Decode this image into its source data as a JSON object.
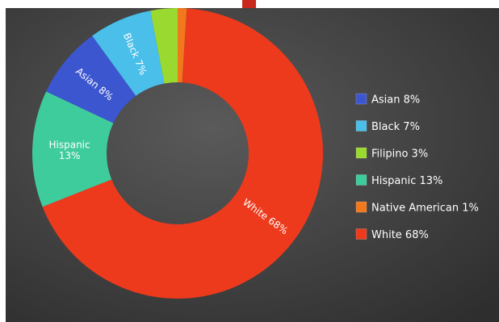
{
  "chart_data": {
    "type": "pie",
    "donut": true,
    "legend_position": "right",
    "grid": false,
    "title": "",
    "categories": [
      "Asian 8%",
      "Black 7%",
      "Filipino 3%",
      "Hispanic 13%",
      "Native American 1%",
      "White 68%"
    ],
    "values": [
      8,
      7,
      3,
      13,
      1,
      68
    ],
    "colors": [
      "#3c56d0",
      "#49bfea",
      "#9ad92f",
      "#3fcc9d",
      "#f2781e",
      "#ee3a1c"
    ],
    "slice_labels": [
      {
        "line1": "Asian 8%",
        "line2": ""
      },
      {
        "line1": "Black 7%",
        "line2": ""
      },
      {
        "line1": "",
        "line2": ""
      },
      {
        "line1": "Hispanic",
        "line2": "13%"
      },
      {
        "line1": "",
        "line2": ""
      },
      {
        "line1": "White 68%",
        "line2": ""
      }
    ]
  },
  "colors": {
    "background_light": "#5a5a5a",
    "background_dark": "#2e2e2e",
    "top_marker": "#c8281e"
  }
}
